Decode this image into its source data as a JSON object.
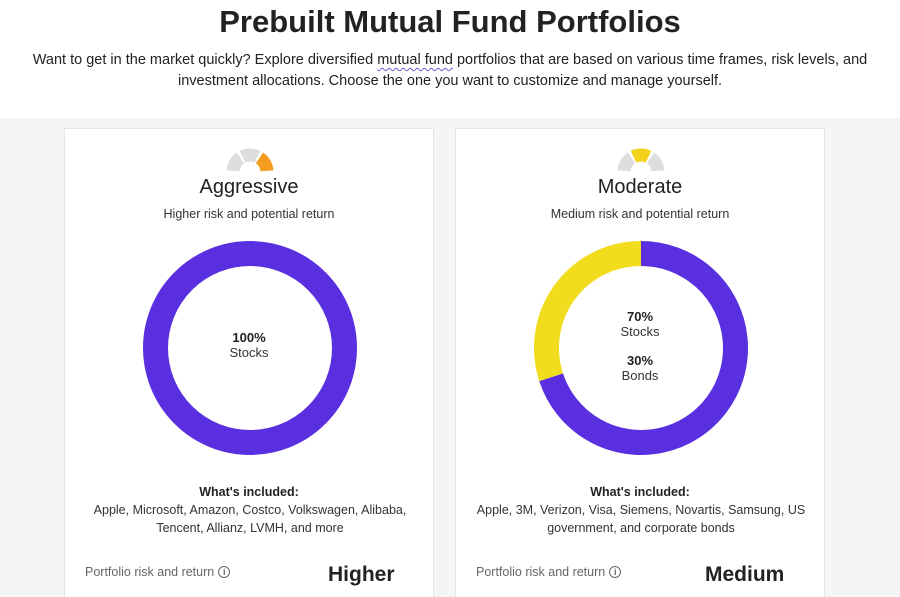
{
  "header": {
    "title": "Prebuilt Mutual Fund Portfolios",
    "intro_before": "Want to get in the market quickly? Explore diversified ",
    "intro_link": "mutual fund",
    "intro_after": " portfolios that are based on various time frames, risk levels, and investment allocations. Choose the one you want to customize and manage yourself."
  },
  "cards": [
    {
      "title": "Aggressive",
      "subtitle": "Higher risk and potential return",
      "gauge": {
        "active_segment": 3,
        "color": "#f39c1f"
      },
      "allocation": [
        {
          "pct_label": "100%",
          "name": "Stocks",
          "value": 100,
          "color": "#5a2fe0"
        }
      ],
      "included_heading": "What's included:",
      "included_text": "Apple, Microsoft, Amazon, Costco, Volkswagen, Alibaba, Tencent, Allianz, LVMH, and more",
      "risk_label": "Portfolio risk and return",
      "risk_value": "Higher"
    },
    {
      "title": "Moderate",
      "subtitle": "Medium risk and potential return",
      "gauge": {
        "active_segment": 2,
        "color": "#f2d21a"
      },
      "allocation": [
        {
          "pct_label": "70%",
          "name": "Stocks",
          "value": 70,
          "color": "#5a2fe0"
        },
        {
          "pct_label": "30%",
          "name": "Bonds",
          "value": 30,
          "color": "#f2dc1e"
        }
      ],
      "included_heading": "What's included:",
      "included_text": "Apple, 3M, Verizon, Visa, Siemens, Novartis, Samsung, US government, and corporate bonds",
      "risk_label": "Portfolio risk and return",
      "risk_value": "Medium"
    }
  ],
  "icons": {
    "info": "info-icon",
    "gauge": "risk-gauge-icon"
  }
}
